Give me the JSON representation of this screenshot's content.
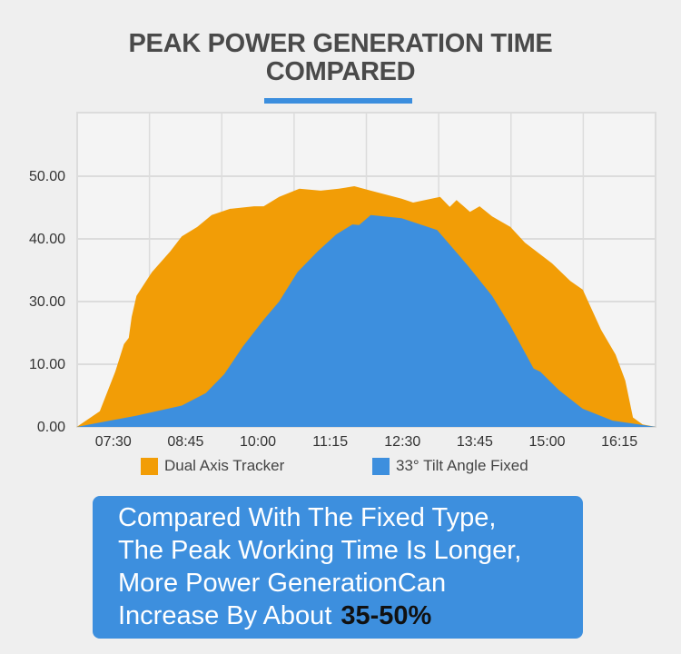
{
  "header": {
    "title_line1": "PEAK POWER GENERATION TIME",
    "title_line2": "COMPARED"
  },
  "colors": {
    "dual_axis": "#f29d06",
    "fixed": "#3d8fde",
    "accent": "#3b8ede",
    "plot_bg": "#f4f4f4",
    "grid": "#dcdcdc"
  },
  "chart_data": {
    "type": "area",
    "title": "PEAK POWER GENERATION TIME COMPARED",
    "xlabel": "",
    "ylabel": "",
    "x_range": [
      "06:52",
      "16:53"
    ],
    "x_ticks": [
      "07:30",
      "08:45",
      "10:00",
      "11:15",
      "12:30",
      "13:45",
      "15:00",
      "16:15"
    ],
    "y_ticks": [
      "0.00",
      "10.00",
      "30.00",
      "40.00",
      "50.00"
    ],
    "y_tick_values": [
      0,
      10,
      30,
      40,
      50
    ],
    "grid": true,
    "legend_position": "bottom",
    "series": [
      {
        "name": "Dual Axis Tracker",
        "color": "#f29d06",
        "points": [
          [
            "06:52",
            0
          ],
          [
            "07:16",
            2.5
          ],
          [
            "07:32",
            8.8
          ],
          [
            "07:41",
            16.4
          ],
          [
            "07:46",
            18.4
          ],
          [
            "07:49",
            25.1
          ],
          [
            "07:54",
            30.9
          ],
          [
            "08:10",
            34.7
          ],
          [
            "08:29",
            38.0
          ],
          [
            "08:41",
            40.4
          ],
          [
            "08:57",
            41.9
          ],
          [
            "09:12",
            43.8
          ],
          [
            "09:31",
            44.8
          ],
          [
            "09:56",
            45.2
          ],
          [
            "10:06",
            45.2
          ],
          [
            "10:22",
            46.7
          ],
          [
            "10:43",
            48.0
          ],
          [
            "11:05",
            47.7
          ],
          [
            "11:24",
            48.0
          ],
          [
            "11:40",
            48.4
          ],
          [
            "11:57",
            47.7
          ],
          [
            "12:29",
            46.4
          ],
          [
            "12:41",
            45.8
          ],
          [
            "13:09",
            46.7
          ],
          [
            "13:19",
            45.1
          ],
          [
            "13:26",
            46.2
          ],
          [
            "13:40",
            44.3
          ],
          [
            "13:50",
            45.2
          ],
          [
            "14:03",
            43.6
          ],
          [
            "14:22",
            41.9
          ],
          [
            "14:37",
            39.4
          ],
          [
            "15:05",
            36.1
          ],
          [
            "15:24",
            33.3
          ],
          [
            "15:37",
            31.9
          ],
          [
            "15:56",
            21.0
          ],
          [
            "16:11",
            13.1
          ],
          [
            "16:21",
            7.4
          ],
          [
            "16:29",
            1.5
          ],
          [
            "16:39",
            0.4
          ],
          [
            "16:53",
            0
          ]
        ]
      },
      {
        "name": "33° Tilt Angle Fixed",
        "color": "#3d8fde",
        "points": [
          [
            "06:52",
            0
          ],
          [
            "07:54",
            1.8
          ],
          [
            "08:41",
            3.4
          ],
          [
            "09:06",
            5.4
          ],
          [
            "09:25",
            8.4
          ],
          [
            "09:44",
            15.5
          ],
          [
            "10:06",
            24.2
          ],
          [
            "10:22",
            30.0
          ],
          [
            "10:41",
            34.7
          ],
          [
            "11:02",
            38.0
          ],
          [
            "11:21",
            40.7
          ],
          [
            "11:38",
            42.3
          ],
          [
            "11:45",
            42.2
          ],
          [
            "11:57",
            43.8
          ],
          [
            "12:29",
            43.3
          ],
          [
            "13:06",
            41.4
          ],
          [
            "13:38",
            35.7
          ],
          [
            "14:03",
            30.9
          ],
          [
            "14:22",
            22.2
          ],
          [
            "14:46",
            9.3
          ],
          [
            "14:53",
            8.8
          ],
          [
            "15:12",
            5.9
          ],
          [
            "15:37",
            2.9
          ],
          [
            "16:08",
            1.0
          ],
          [
            "16:53",
            0
          ]
        ]
      }
    ]
  },
  "legend": {
    "dual_label": "Dual Axis Tracker",
    "fixed_label": "33° Tilt Angle Fixed"
  },
  "note": {
    "line1": "Compared With The Fixed Type,",
    "line2": "The Peak Working Time Is Longer,",
    "line3": "More Power GenerationCan",
    "line4": "Increase By About",
    "highlight": "35-50%"
  }
}
